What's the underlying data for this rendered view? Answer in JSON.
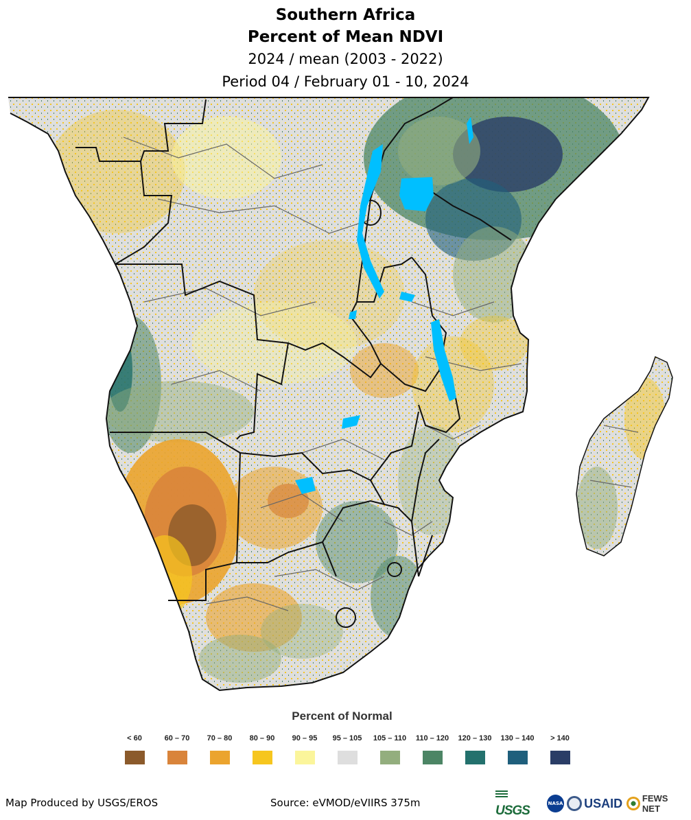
{
  "title": {
    "line1": "Southern Africa",
    "line2": "Percent of Mean NDVI",
    "line3": "2024 / mean (2003 - 2022)",
    "line4": "Period 04 / February 01 - 10, 2024"
  },
  "legend": {
    "title": "Percent of Normal",
    "items": [
      {
        "label": "< 60",
        "color": "#8b5a2b"
      },
      {
        "label": "60 – 70",
        "color": "#d9843b"
      },
      {
        "label": "70 – 80",
        "color": "#eba42e"
      },
      {
        "label": "80 – 90",
        "color": "#f6c61e"
      },
      {
        "label": "90 – 95",
        "color": "#fbf59b"
      },
      {
        "label": "95 – 105",
        "color": "#dedede"
      },
      {
        "label": "105 – 110",
        "color": "#93ae7e"
      },
      {
        "label": "110 – 120",
        "color": "#4c8565"
      },
      {
        "label": "120 – 130",
        "color": "#23716d"
      },
      {
        "label": "130 – 140",
        "color": "#1f5f7c"
      },
      {
        "label": "> 140",
        "color": "#2a3d66"
      }
    ]
  },
  "map": {
    "water_color": "#00bfff",
    "border_color": "#111111",
    "admin_color": "#666666"
  },
  "footer": {
    "produced_by": "Map Produced by USGS/EROS",
    "source": "Source: eVMOD/eVIIRS 375m"
  },
  "logos": {
    "usgs": "USGS",
    "nasa": "NASA",
    "usaid": "USAID",
    "fews": "FEWS NET"
  }
}
